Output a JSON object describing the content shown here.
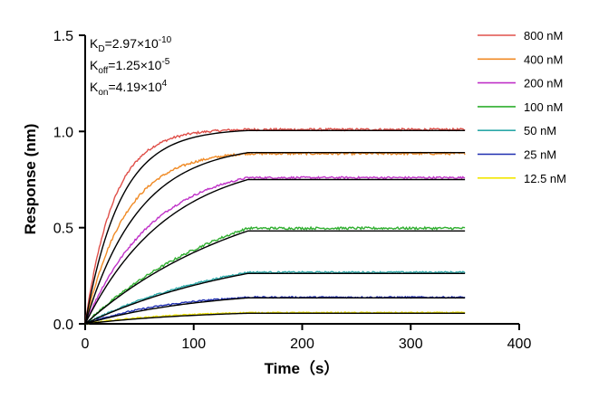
{
  "chart_data": {
    "type": "line",
    "title": "",
    "xlabel": "Time（s）",
    "ylabel": "Response (nm)",
    "xlim": [
      0,
      400
    ],
    "ylim": [
      0,
      1.5
    ],
    "xticks": [
      "0",
      "100",
      "200",
      "300",
      "400"
    ],
    "yticks": [
      "0.0",
      "0.5",
      "1.0",
      "1.5"
    ],
    "grid": false,
    "legend_position": "top-right",
    "fit_color": "#000000",
    "association_end": 150,
    "dissociation_end": 350,
    "annotations": {
      "kd": {
        "base": "K",
        "sub": "D",
        "text": "=2.97×10",
        "sup": "-10"
      },
      "koff": {
        "base": "K",
        "sub": "off",
        "text": "=1.25×10",
        "sup": "-5"
      },
      "kon": {
        "base": "K",
        "sub": "on",
        "text": "=4.19×10",
        "sup": "4"
      }
    },
    "series": [
      {
        "name": "800 nM",
        "color": "#e0504a",
        "plateau": 1.01,
        "rate": 0.038,
        "noise": 0.006
      },
      {
        "name": "400 nM",
        "color": "#f08a24",
        "plateau": 0.885,
        "rate": 0.027,
        "noise": 0.006
      },
      {
        "name": "200 nM",
        "color": "#c032c8",
        "plateau": 0.76,
        "rate": 0.016,
        "noise": 0.005
      },
      {
        "name": "100 nM",
        "color": "#2fae2f",
        "plateau": 0.497,
        "rate": 0.007,
        "noise": 0.006
      },
      {
        "name": "50 nM",
        "color": "#2aa8a8",
        "plateau": 0.268,
        "rate": 0.007,
        "noise": 0.004
      },
      {
        "name": "25 nM",
        "color": "#1f2fb0",
        "plateau": 0.138,
        "rate": 0.012,
        "noise": 0.004
      },
      {
        "name": "12.5 nM",
        "color": "#f2e600",
        "plateau": 0.058,
        "rate": 0.012,
        "noise": 0.003
      }
    ],
    "fits": [
      {
        "plateau": 1.005,
        "rate": 0.031
      },
      {
        "plateau": 0.89,
        "rate": 0.02
      },
      {
        "plateau": 0.75,
        "rate": 0.013
      },
      {
        "plateau": 0.483,
        "rate": 0.0065
      },
      {
        "plateau": 0.262,
        "rate": 0.0062
      },
      {
        "plateau": 0.135,
        "rate": 0.009
      },
      {
        "plateau": 0.055,
        "rate": 0.009
      }
    ]
  }
}
